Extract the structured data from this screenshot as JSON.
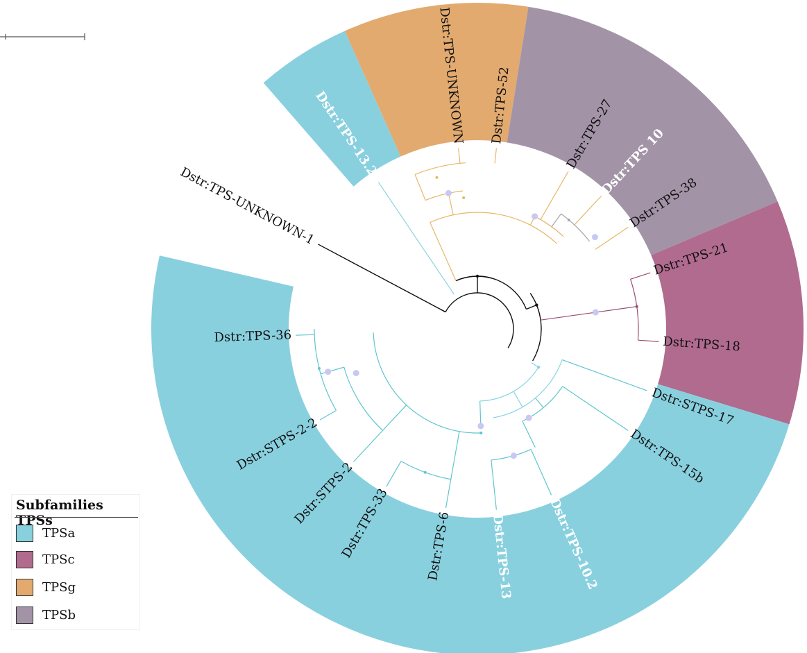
{
  "colors": {
    "TPSa": "#89d0df",
    "TPSc": "#b06b8e",
    "TPSg": "#e2aa6f",
    "TPSb": "#a393a7",
    "node_dot": "#c9c8f3",
    "root_line": "#000000"
  },
  "legend": {
    "title": "Subfamilies TPSs",
    "items": [
      {
        "label": "TPSa",
        "color": "#89d0df"
      },
      {
        "label": "TPSc",
        "color": "#b06b8e"
      },
      {
        "label": "TPSg",
        "color": "#e2aa6f"
      },
      {
        "label": "TPSb",
        "color": "#a393a7"
      }
    ]
  },
  "leaves": [
    {
      "label": "Dstr:TPS-UNKNOWN-1",
      "subfamily": "",
      "white": false,
      "bold": false
    },
    {
      "label": "Dstr:TPS-13.2",
      "subfamily": "TPSa",
      "white": true,
      "bold": true
    },
    {
      "label": "Dstr:TPS-UNKNOWN",
      "subfamily": "TPSg",
      "white": false,
      "bold": false
    },
    {
      "label": "Dstr:TPS-52",
      "subfamily": "TPSg",
      "white": false,
      "bold": false
    },
    {
      "label": "Dstr:TPS-27",
      "subfamily": "TPSg",
      "white": false,
      "bold": false
    },
    {
      "label": "Dstr:TPS 10",
      "subfamily": "TPSb",
      "white": true,
      "bold": true
    },
    {
      "label": "Dstr:TPS-38",
      "subfamily": "TPSg",
      "white": false,
      "bold": false
    },
    {
      "label": "Dstr:TPS-21",
      "subfamily": "TPSc",
      "white": false,
      "bold": false
    },
    {
      "label": "Dstr:TPS-18",
      "subfamily": "TPSc",
      "white": false,
      "bold": false
    },
    {
      "label": "Dstr:STPS-17",
      "subfamily": "TPSa",
      "white": false,
      "bold": false
    },
    {
      "label": "Dstr:TPS-15b",
      "subfamily": "TPSa",
      "white": false,
      "bold": false
    },
    {
      "label": "Dstr:TPS-10.2",
      "subfamily": "TPSa",
      "white": true,
      "bold": true
    },
    {
      "label": "Dstr:TPS-13",
      "subfamily": "TPSa",
      "white": true,
      "bold": true
    },
    {
      "label": "Dstr:TPS-6",
      "subfamily": "TPSa",
      "white": false,
      "bold": false
    },
    {
      "label": "Dstr:TPS-33",
      "subfamily": "TPSa",
      "white": false,
      "bold": false
    },
    {
      "label": "Dstr:STPS-2",
      "subfamily": "TPSa",
      "white": false,
      "bold": false
    },
    {
      "label": "Dstr:STPS-2-2",
      "subfamily": "TPSa",
      "white": false,
      "bold": false
    },
    {
      "label": "Dstr:TPS-36",
      "subfamily": "TPSa",
      "white": false,
      "bold": false
    }
  ]
}
